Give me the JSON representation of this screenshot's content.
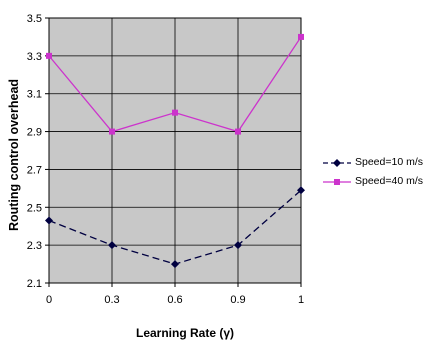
{
  "chart_data": {
    "type": "line",
    "title": "",
    "xlabel": "Learning Rate (γ)",
    "ylabel": "Routing control overhead",
    "x": [
      0,
      0.3,
      0.6,
      0.9,
      1
    ],
    "x_tick_labels": [
      "0",
      "0.3",
      "0.6",
      "0.9",
      "1"
    ],
    "y_ticks": [
      2.1,
      2.3,
      2.5,
      2.7,
      2.9,
      3.1,
      3.3,
      3.5
    ],
    "y_tick_labels": [
      "2.1",
      "2.3",
      "2.5",
      "2.7",
      "2.9",
      "3.1",
      "3.3",
      "3.5"
    ],
    "ylim": [
      2.1,
      3.5
    ],
    "grid": true,
    "legend_position": "right",
    "plot_background": "#c8c8c8",
    "series": [
      {
        "name": "Speed=10 m/s",
        "values": [
          2.43,
          2.3,
          2.2,
          2.3,
          2.59
        ],
        "color": "#000040",
        "marker": "diamond",
        "line_style": "dashed"
      },
      {
        "name": "Speed=40 m/s",
        "values": [
          3.3,
          2.9,
          3.0,
          2.9,
          3.4
        ],
        "color": "#cc33cc",
        "marker": "square",
        "line_style": "solid"
      }
    ]
  }
}
